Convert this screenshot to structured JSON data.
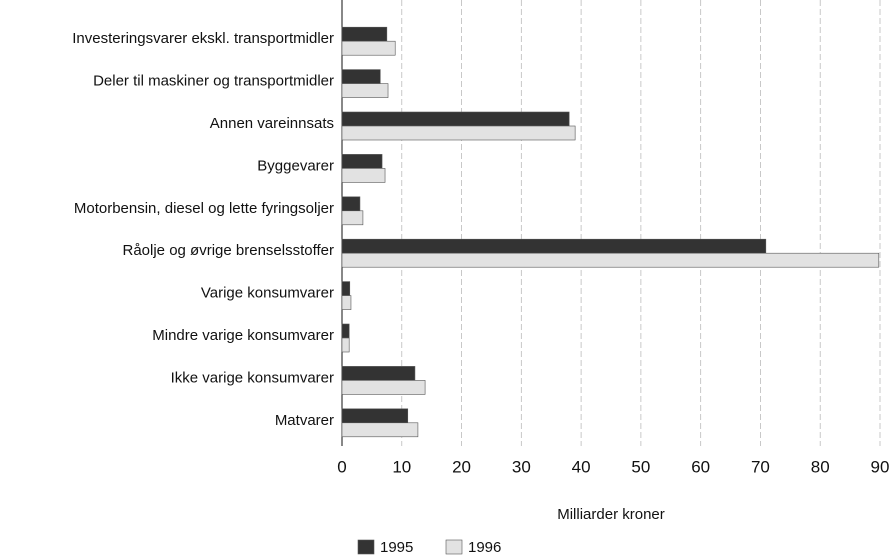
{
  "chart_data": {
    "type": "barh",
    "categories": [
      "Investeringsvarer ekskl. transportmidler",
      "Deler til maskiner og transportmidler",
      "Annen vareinnsats",
      "Byggevarer",
      "Motorbensin, diesel og lette fyringsoljer",
      "Råolje og øvrige brenselsstoffer",
      "Varige konsumvarer",
      "Mindre varige konsumvarer",
      "Ikke varige konsumvarer",
      "Matvarer"
    ],
    "series": [
      {
        "name": "1995",
        "color": "#333333",
        "values": [
          7.5,
          6.4,
          38.0,
          6.7,
          3.0,
          70.9,
          1.3,
          1.2,
          12.2,
          11.0
        ]
      },
      {
        "name": "1996",
        "color": "#e2e2e2",
        "values": [
          8.9,
          7.7,
          39.0,
          7.2,
          3.5,
          89.8,
          1.5,
          1.2,
          13.9,
          12.7
        ]
      }
    ],
    "xlabel": "Milliarder kroner",
    "xlim": [
      0,
      90
    ],
    "xticks": [
      0,
      10,
      20,
      30,
      40,
      50,
      60,
      70,
      80,
      90
    ],
    "grid": true,
    "legend": "bottom"
  }
}
